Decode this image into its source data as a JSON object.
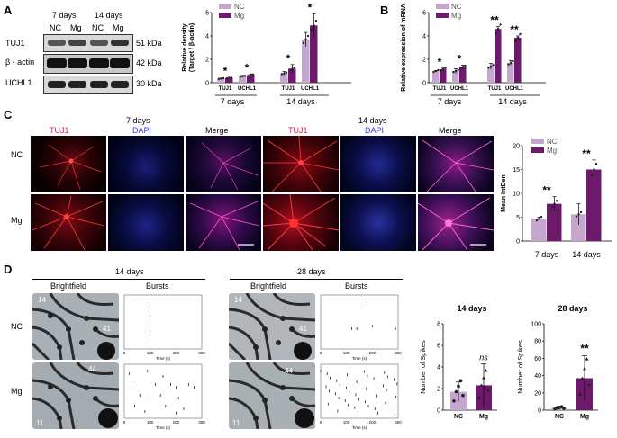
{
  "panel_labels": {
    "a": "A",
    "b": "B",
    "c": "C",
    "d": "D"
  },
  "colors": {
    "nc": "#c4a6cf",
    "mg": "#6e1a6c",
    "tuj1": "#ff2a2a",
    "dapi": "#3344ff",
    "merge": "#ff44cc"
  },
  "panel_a": {
    "blot_time_labels": [
      "7 days",
      "14 days"
    ],
    "lane_labels": [
      "NC",
      "Mg",
      "NC",
      "Mg"
    ],
    "proteins": [
      "TUJ1",
      "β - actin",
      "UCHL1"
    ],
    "sizes": [
      "51 kDa",
      "42 kDa",
      "30 kDa"
    ],
    "chart_legend": {
      "nc": "NC",
      "mg": "Mg"
    },
    "chart_time_labels": [
      "7 days",
      "14 days"
    ]
  },
  "panel_b": {
    "legend": {
      "nc": "NC",
      "mg": "Mg"
    },
    "time_labels": [
      "7 days",
      "14 days"
    ]
  },
  "panel_c": {
    "time_labels": [
      "7 days",
      "14 days"
    ],
    "channel_labels": [
      "TUJ1",
      "DAPI",
      "Merge"
    ],
    "row_labels": [
      "NC",
      "Mg"
    ],
    "legend": {
      "nc": "NC",
      "mg": "Mg"
    }
  },
  "panel_d": {
    "time_labels": [
      "14 days",
      "28 days"
    ],
    "col_labels": [
      "Brightfield",
      "Bursts"
    ],
    "row_labels": [
      "NC",
      "Mg"
    ],
    "bf_numbers": {
      "nc14_a": "14",
      "nc14_b": "41",
      "mg14_a": "44",
      "mg14_b": "11",
      "nc28_a": "14",
      "nc28_b": "41",
      "mg28_a": "44",
      "mg28_b": "11"
    },
    "burst_ticks": [
      "0",
      "100",
      "200",
      "300"
    ],
    "burst_xlabel": "Time (s)"
  },
  "chart_data": [
    {
      "id": "A_density",
      "type": "bar",
      "ylabel": "Relative density\n(Target / β-actin)",
      "ylim": [
        0,
        6
      ],
      "yticks": [
        0,
        2,
        4,
        6
      ],
      "categories": [
        "TUJ1",
        "UCHL1",
        "TUJ1",
        "UCHL1"
      ],
      "groups": [
        "7 days",
        "7 days",
        "14 days",
        "14 days"
      ],
      "series": [
        {
          "name": "NC",
          "values": [
            0.35,
            0.55,
            0.8,
            3.7
          ],
          "errors": [
            0.05,
            0.08,
            0.15,
            0.6
          ]
        },
        {
          "name": "Mg",
          "values": [
            0.4,
            0.65,
            1.2,
            4.9
          ],
          "errors": [
            0.06,
            0.1,
            0.35,
            1.0
          ]
        }
      ],
      "significance": [
        "*",
        "*",
        "*",
        "*"
      ]
    },
    {
      "id": "B_mRNA",
      "type": "bar",
      "ylabel": "Relative expression of mRNA",
      "ylim": [
        0,
        6
      ],
      "yticks": [
        0,
        2,
        4,
        6
      ],
      "categories": [
        "TUJ1",
        "UCHL1",
        "TUJ1",
        "UCHL1"
      ],
      "groups": [
        "7 days",
        "7 days",
        "14 days",
        "14 days"
      ],
      "series": [
        {
          "name": "NC",
          "values": [
            1.0,
            1.0,
            1.4,
            1.7
          ],
          "errors": [
            0.05,
            0.2,
            0.25,
            0.2
          ]
        },
        {
          "name": "Mg",
          "values": [
            1.15,
            1.35,
            4.6,
            3.85
          ],
          "errors": [
            0.1,
            0.15,
            0.2,
            0.15
          ]
        }
      ],
      "significance": [
        "*",
        "*",
        "**",
        "**"
      ]
    },
    {
      "id": "C_intden",
      "type": "bar",
      "ylabel": "Mean IntDen",
      "ylim": [
        0,
        20
      ],
      "yticks": [
        0,
        5,
        10,
        15,
        20
      ],
      "categories": [
        "7 days",
        "14 days"
      ],
      "series": [
        {
          "name": "NC",
          "values": [
            4.7,
            5.6
          ],
          "errors": [
            0.3,
            2.2
          ]
        },
        {
          "name": "Mg",
          "values": [
            7.8,
            15.0
          ],
          "errors": [
            1.5,
            2.0
          ]
        }
      ],
      "significance": [
        "**",
        "**"
      ]
    },
    {
      "id": "D_spikes_14",
      "type": "bar",
      "title": "14 days",
      "ylabel": "Number of Spikes",
      "ylim": [
        0,
        8
      ],
      "yticks": [
        0,
        2,
        4,
        6,
        8
      ],
      "categories": [
        "NC",
        "Mg"
      ],
      "values": [
        1.7,
        2.3
      ],
      "errors": [
        0.9,
        2.0
      ],
      "significance": [
        "",
        "ns"
      ]
    },
    {
      "id": "D_spikes_28",
      "type": "bar",
      "title": "28 days",
      "ylabel": "Number of Spikes",
      "ylim": [
        0,
        100
      ],
      "yticks": [
        0,
        20,
        40,
        60,
        80,
        100
      ],
      "categories": [
        "NC",
        "Mg"
      ],
      "values": [
        2.5,
        37
      ],
      "errors": [
        2.0,
        26
      ],
      "significance": [
        "",
        "**"
      ]
    }
  ]
}
